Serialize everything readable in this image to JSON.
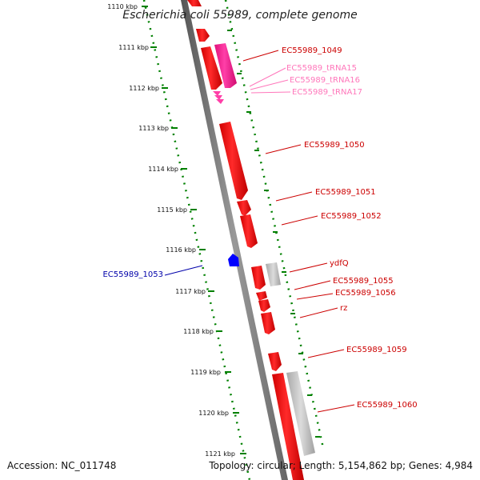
{
  "title": "Escherichia coli 55989, complete genome",
  "footer": {
    "accession": "Accession: NC_011748",
    "summary": "Topology: circular; Length: 5,154,862 bp; Genes: 4,984"
  },
  "colors": {
    "gene": "#ff0000",
    "gene_dark": "#b00000",
    "trna": "#ff1493",
    "trna_label": "#ff77bb",
    "reverse_gene": "#0000ff",
    "pseudo": "#c0c0c0",
    "ruler": "#008000",
    "label": "#cc0000",
    "label_reverse": "#0000aa"
  },
  "ticks": [
    {
      "label": "1110 kbp"
    },
    {
      "label": "1111 kbp"
    },
    {
      "label": "1112 kbp"
    },
    {
      "label": "1113 kbp"
    },
    {
      "label": "1114 kbp"
    },
    {
      "label": "1115 kbp"
    },
    {
      "label": "1116 kbp"
    },
    {
      "label": "1117 kbp"
    },
    {
      "label": "1118 kbp"
    },
    {
      "label": "1119 kbp"
    },
    {
      "label": "1120 kbp"
    },
    {
      "label": "1121 kbp"
    }
  ],
  "genes": [
    {
      "label": "EC55989_1049",
      "type": "gene"
    },
    {
      "label": "EC55989_tRNA15",
      "type": "trna"
    },
    {
      "label": "EC55989_tRNA16",
      "type": "trna"
    },
    {
      "label": "EC55989_tRNA17",
      "type": "trna"
    },
    {
      "label": "EC55989_1050",
      "type": "gene"
    },
    {
      "label": "EC55989_1051",
      "type": "gene"
    },
    {
      "label": "EC55989_1052",
      "type": "gene"
    },
    {
      "label": "EC55989_1053",
      "type": "reverse"
    },
    {
      "label": "ydfQ",
      "type": "gene"
    },
    {
      "label": "EC55989_1055",
      "type": "gene"
    },
    {
      "label": "EC55989_1056",
      "type": "gene"
    },
    {
      "label": "rz",
      "type": "gene"
    },
    {
      "label": "EC55989_1059",
      "type": "gene"
    },
    {
      "label": "EC55989_1060",
      "type": "gene"
    }
  ]
}
